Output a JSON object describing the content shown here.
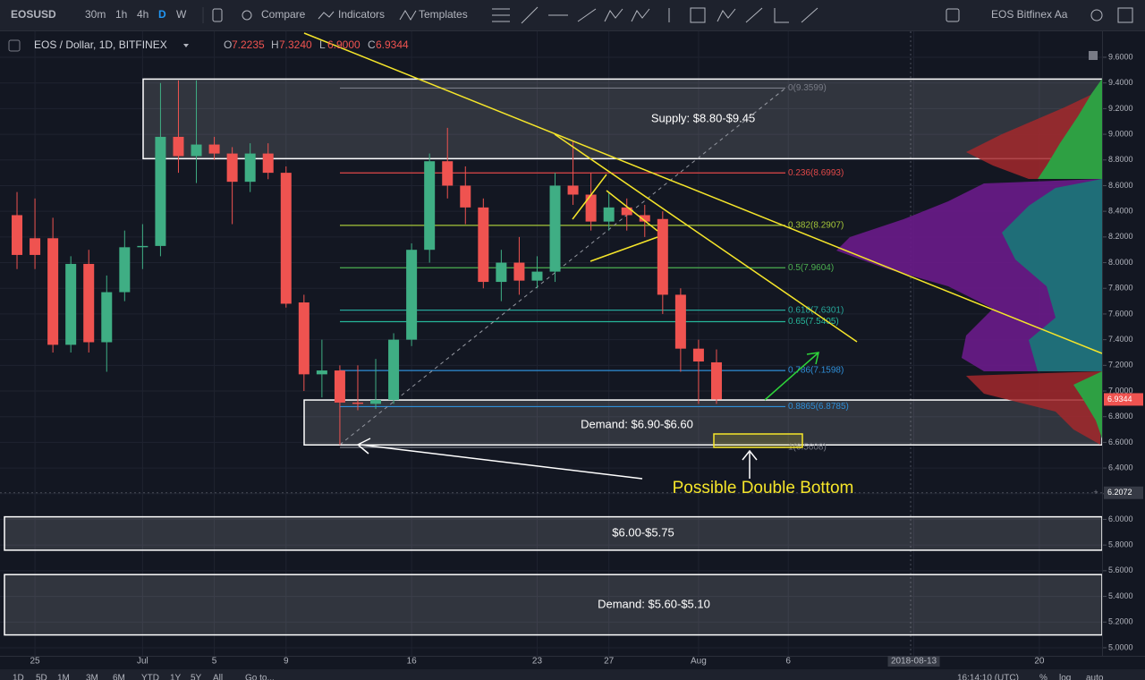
{
  "toolbar": {
    "symbol": "EOSUSD",
    "intervals": [
      "30m",
      "1h",
      "4h",
      "D",
      "W"
    ],
    "active_interval": 3,
    "buttons": [
      "Compare",
      "Indicators",
      "Templates"
    ],
    "layout_name": "EOS Bitfinex Aa"
  },
  "header": {
    "title": "EOS / Dollar, 1D, BITFINEX",
    "ohlc_letters": [
      "O",
      "H",
      "L",
      "C"
    ],
    "ohlc_values": [
      "7.2235",
      "7.3240",
      "6.9000",
      "6.9344"
    ]
  },
  "bottom_bar": {
    "ranges": [
      "1D",
      "5D",
      "1M",
      "3M",
      "6M",
      "YTD",
      "1Y",
      "5Y",
      "All",
      "Go to..."
    ],
    "time": "16:14:10 (UTC)",
    "options": [
      "%",
      "log",
      "auto"
    ]
  },
  "chart_data": {
    "type": "candlestick",
    "categories": [
      null,
      "25",
      null,
      null,
      null,
      null,
      null,
      "Jul",
      null,
      null,
      null,
      "5",
      null,
      null,
      null,
      "9",
      null,
      null,
      null,
      null,
      null,
      null,
      "16",
      null,
      null,
      null,
      null,
      null,
      null,
      "23",
      null,
      null,
      null,
      "27",
      null,
      null,
      null,
      null,
      "Aug",
      null,
      null,
      null,
      null,
      "6",
      null,
      null,
      null,
      null,
      null,
      null,
      "2018-08-13",
      null,
      null,
      null,
      null,
      null,
      null,
      "20"
    ],
    "open": [
      8.37,
      8.19,
      8.19,
      7.36,
      7.99,
      7.38,
      7.77,
      8.12,
      8.13,
      8.98,
      8.83,
      8.92,
      8.85,
      8.63,
      8.85,
      8.7,
      7.69,
      7.13,
      7.16,
      6.91,
      6.9,
      6.93,
      7.4,
      8.1,
      8.79,
      8.6,
      8.43,
      7.85,
      8.0,
      7.86,
      7.93,
      8.6,
      8.53,
      8.32,
      8.43,
      8.37,
      8.34,
      7.75,
      7.33,
      7.2235,
      null,
      null,
      null,
      null,
      null,
      null,
      null,
      null,
      null,
      null,
      null,
      null,
      null,
      null,
      null,
      null,
      null,
      null
    ],
    "high": [
      8.55,
      8.5,
      8.35,
      8.05,
      8.1,
      7.9,
      8.25,
      8.3,
      9.4,
      9.42,
      9.42,
      8.98,
      8.9,
      8.93,
      8.93,
      8.75,
      7.75,
      7.4,
      7.2,
      7.2,
      7.25,
      7.45,
      8.15,
      8.85,
      9.05,
      8.75,
      8.5,
      8.1,
      8.2,
      8.05,
      8.7,
      8.95,
      8.7,
      8.55,
      8.5,
      8.45,
      8.4,
      7.8,
      7.4,
      7.324,
      null,
      null,
      null,
      null,
      null,
      null,
      null,
      null,
      null,
      null,
      null,
      null,
      null,
      null,
      null,
      null,
      null,
      null
    ],
    "low": [
      7.95,
      7.95,
      7.3,
      7.3,
      7.3,
      7.15,
      7.7,
      7.95,
      8.05,
      8.7,
      8.62,
      8.8,
      8.3,
      8.55,
      8.65,
      7.65,
      7.0,
      6.95,
      6.58,
      6.85,
      6.86,
      6.9,
      7.35,
      8.0,
      8.5,
      8.3,
      7.8,
      7.7,
      7.75,
      7.8,
      7.85,
      8.45,
      8.25,
      8.25,
      8.25,
      8.2,
      7.6,
      7.15,
      6.9,
      6.9,
      null,
      null,
      null,
      null,
      null,
      null,
      null,
      null,
      null,
      null,
      null,
      null,
      null,
      null,
      null,
      null,
      null,
      null
    ],
    "close": [
      8.06,
      8.06,
      7.36,
      7.99,
      7.38,
      7.77,
      8.12,
      8.13,
      8.98,
      8.83,
      8.92,
      8.85,
      8.63,
      8.85,
      8.7,
      7.68,
      7.13,
      7.16,
      6.91,
      6.9,
      6.93,
      7.4,
      8.1,
      8.79,
      8.6,
      8.43,
      7.85,
      8.0,
      7.86,
      7.93,
      8.6,
      8.53,
      8.32,
      8.43,
      8.37,
      8.32,
      7.75,
      7.33,
      7.23,
      6.9344,
      null,
      null,
      null,
      null,
      null,
      null,
      null,
      null,
      null,
      null,
      null,
      null,
      null,
      null,
      null,
      null,
      null,
      null
    ],
    "up_color": "#3fae84",
    "down_color": "#ef5350",
    "ylim": [
      4.9,
      9.8
    ],
    "yticks": [
      {
        "value": 5.0,
        "label": "5.0000"
      },
      {
        "value": 5.2,
        "label": "5.2000"
      },
      {
        "value": 5.4,
        "label": "5.4000"
      },
      {
        "value": 5.6,
        "label": "5.6000"
      },
      {
        "value": 5.8,
        "label": "5.8000"
      },
      {
        "value": 6.0,
        "label": "6.0000"
      },
      {
        "value": 6.2,
        "label": "6.2000"
      },
      {
        "value": 6.4,
        "label": "6.4000"
      },
      {
        "value": 6.6,
        "label": "6.6000"
      },
      {
        "value": 6.8,
        "label": "6.8000"
      },
      {
        "value": 7.0,
        "label": "7.0000"
      },
      {
        "value": 7.2,
        "label": "7.2000"
      },
      {
        "value": 7.4,
        "label": "7.4000"
      },
      {
        "value": 7.6,
        "label": "7.6000"
      },
      {
        "value": 7.8,
        "label": "7.8000"
      },
      {
        "value": 8.0,
        "label": "8.0000"
      },
      {
        "value": 8.2,
        "label": "8.2000"
      },
      {
        "value": 8.4,
        "label": "8.4000"
      },
      {
        "value": 8.6,
        "label": "8.6000"
      },
      {
        "value": 8.8,
        "label": "8.8000"
      },
      {
        "value": 9.0,
        "label": "9.0000"
      },
      {
        "value": 9.2,
        "label": "9.2000"
      },
      {
        "value": 9.4,
        "label": "9.4000"
      },
      {
        "value": 9.6,
        "label": "9.6000"
      }
    ],
    "grid": true,
    "fib_levels": [
      {
        "value": 9.3599,
        "label": "0(9.3599)",
        "color": "#787b86"
      },
      {
        "value": 8.6993,
        "label": "0.236(8.6993)",
        "color": "#e04848"
      },
      {
        "value": 8.2907,
        "label": "0.382(8.2907)",
        "color": "#a4c639"
      },
      {
        "value": 7.9604,
        "label": "0.5(7.9604)",
        "color": "#4caf50"
      },
      {
        "value": 7.6301,
        "label": "0.618(7.6301)",
        "color": "#26a69a"
      },
      {
        "value": 7.5405,
        "label": "0.65(7.5405)",
        "color": "#26b69a"
      },
      {
        "value": 7.1598,
        "label": "0.786(7.1598)",
        "color": "#2f8fd8"
      },
      {
        "value": 6.8785,
        "label": "0.8865(6.8785)",
        "color": "#2f8fd8"
      },
      {
        "value": 6.5608,
        "label": "1(6.5608)",
        "color": "#787b86"
      }
    ],
    "zones": [
      {
        "label": "Supply: $8.80-$9.45",
        "top": 9.43,
        "bottom": 8.81
      },
      {
        "label": "Demand: $6.90-$6.60",
        "top": 6.93,
        "bottom": 6.58
      },
      {
        "label": "$6.00-$5.75",
        "top": 6.02,
        "bottom": 5.76
      },
      {
        "label": "Demand: $5.60-$5.10",
        "top": 5.57,
        "bottom": 5.1
      }
    ],
    "annotation": "Possible Double Bottom",
    "crosshair_price": 6.2072
  }
}
